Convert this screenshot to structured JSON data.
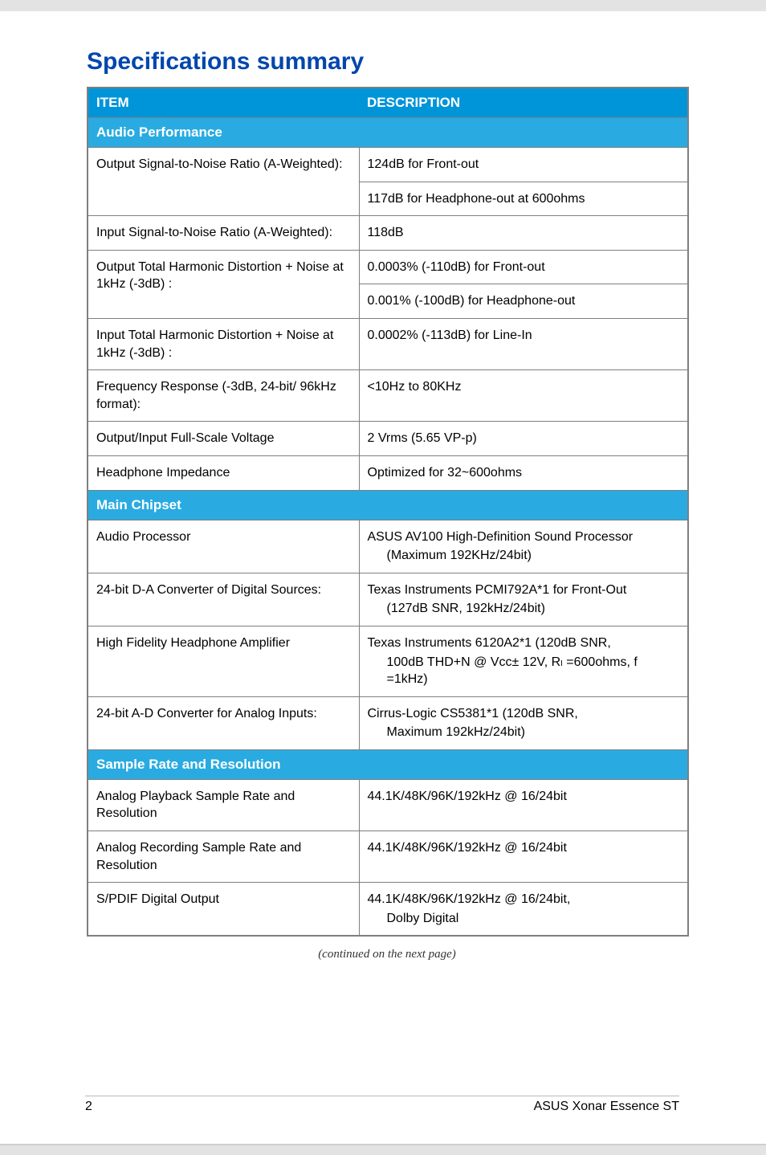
{
  "title": "Specifications summary",
  "headers": {
    "item": "ITEM",
    "description": "DESCRIPTION"
  },
  "sections": {
    "audio_perf": {
      "label": "Audio Performance",
      "rows": [
        {
          "item": "Output Signal-to-Noise Ratio (A-Weighted):",
          "desc": [
            "124dB for Front-out",
            "117dB for Headphone-out at 600ohms"
          ]
        },
        {
          "item": "Input Signal-to-Noise Ratio (A-Weighted):",
          "desc": [
            "118dB"
          ]
        },
        {
          "item": "Output Total Harmonic Distortion + Noise at 1kHz  (-3dB) :",
          "desc": [
            "0.0003% (-110dB) for Front-out",
            "0.001% (-100dB) for Headphone-out"
          ]
        },
        {
          "item": "Input Total Harmonic Distortion + Noise at 1kHz  (-3dB) :",
          "desc": [
            "0.0002% (-113dB) for Line-In"
          ]
        },
        {
          "item": "Frequency Response (-3dB, 24-bit/ 96kHz format):",
          "desc": [
            "<10Hz to 80KHz"
          ]
        },
        {
          "item": "Output/Input Full-Scale Voltage",
          "desc": [
            "2 Vrms (5.65 VP-p)"
          ]
        },
        {
          "item": "Headphone  Impedance",
          "desc": [
            "Optimized for 32~600ohms"
          ]
        }
      ]
    },
    "main_chipset": {
      "label": "Main Chipset",
      "rows": [
        {
          "item": "Audio Processor",
          "desc_main": "ASUS AV100 High-Definition Sound Processor",
          "desc_sub": "(Maximum 192KHz/24bit)"
        },
        {
          "item": "24-bit D-A Converter of Digital Sources:",
          "desc_main": "Texas Instruments PCMI792A*1 for Front-Out",
          "desc_sub": "(127dB SNR, 192kHz/24bit)"
        },
        {
          "item": "High Fidelity Headphone Amplifier",
          "desc_main": "Texas Instruments 6120A2*1 (120dB SNR,",
          "desc_sub": "100dB THD+N @ Vcc± 12V, Rₗ =600ohms, f =1kHz)"
        },
        {
          "item": "24-bit A-D Converter for Analog Inputs:",
          "desc_main": "Cirrus-Logic CS5381*1 (120dB SNR,",
          "desc_sub": "Maximum 192kHz/24bit)"
        }
      ]
    },
    "sample_rate": {
      "label": "Sample Rate and Resolution",
      "rows": [
        {
          "item": "Analog Playback Sample Rate and Resolution",
          "desc_main": "44.1K/48K/96K/192kHz @ 16/24bit",
          "desc_sub": ""
        },
        {
          "item": "Analog Recording Sample Rate and Resolution",
          "desc_main": "44.1K/48K/96K/192kHz @ 16/24bit",
          "desc_sub": ""
        },
        {
          "item": "S/PDIF Digital Output",
          "desc_main": "44.1K/48K/96K/192kHz @ 16/24bit,",
          "desc_sub": "Dolby Digital"
        }
      ]
    }
  },
  "continued": "(continued on the next page)",
  "footer": {
    "page": "2",
    "product": "ASUS Xonar Essence ST"
  },
  "colors": {
    "title": "#0046ad",
    "hdr_bg": "#0094d8",
    "section_bg": "#29abe2",
    "border": "#7f7f7f"
  }
}
